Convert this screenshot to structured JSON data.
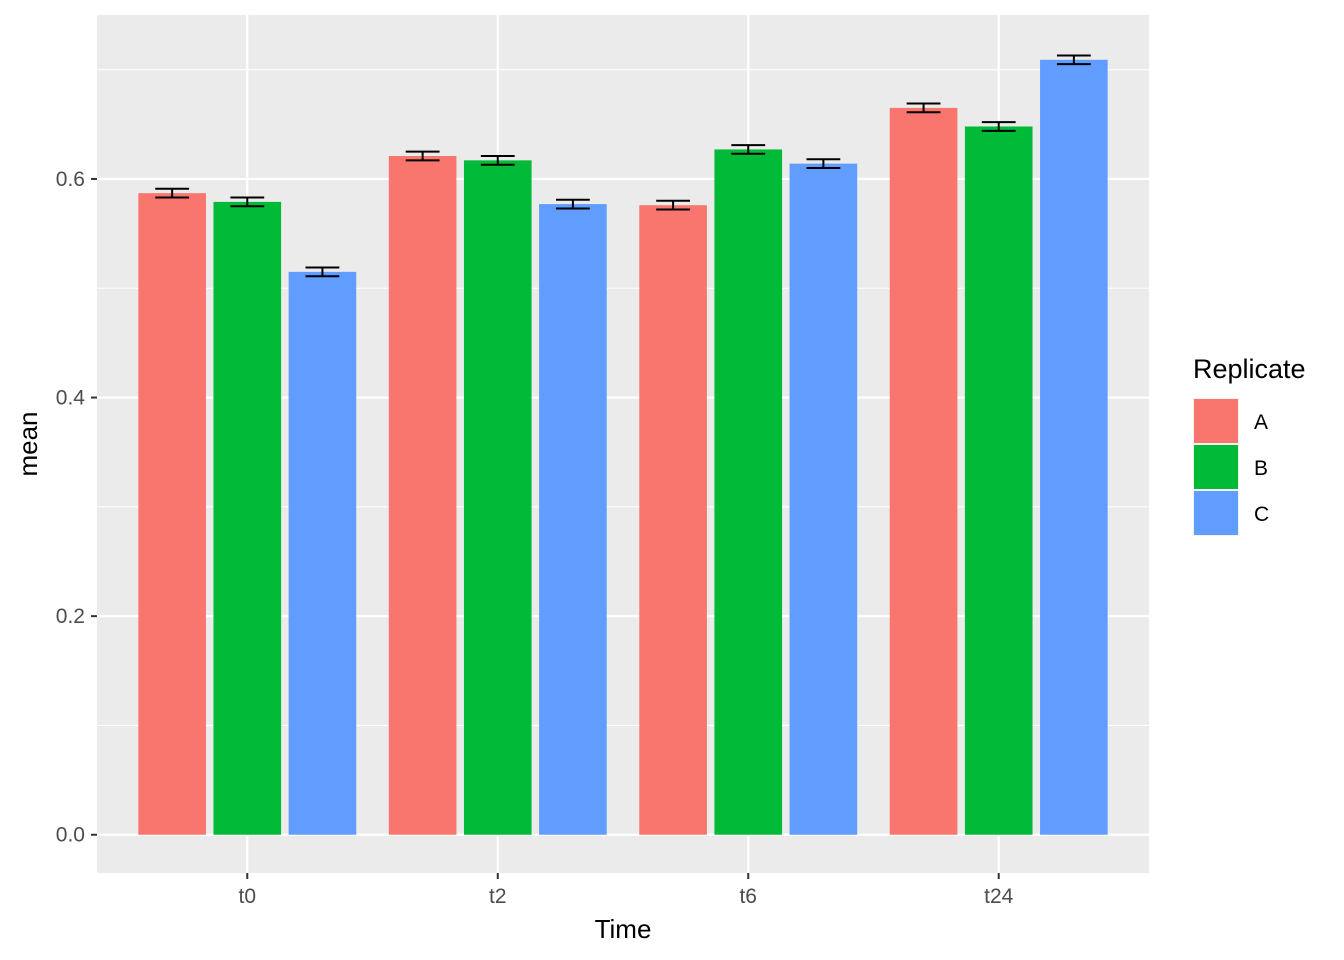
{
  "chart_data": {
    "type": "bar",
    "xlabel": "Time",
    "ylabel": "mean",
    "categories": [
      "t0",
      "t2",
      "t6",
      "t24"
    ],
    "ylim": [
      -0.035,
      0.75
    ],
    "yticks": [
      0.0,
      0.2,
      0.4,
      0.6
    ],
    "ytick_labels": [
      "0.0",
      "0.2",
      "0.4",
      "0.6"
    ],
    "grid": true,
    "legend": {
      "title": "Replicate",
      "position": "right"
    },
    "series": [
      {
        "name": "A",
        "color": "#F8766D",
        "values": [
          0.587,
          0.621,
          0.576,
          0.665
        ],
        "errors": [
          0.004,
          0.004,
          0.004,
          0.004
        ]
      },
      {
        "name": "B",
        "color": "#00BA38",
        "values": [
          0.579,
          0.617,
          0.627,
          0.648
        ],
        "errors": [
          0.004,
          0.004,
          0.004,
          0.004
        ]
      },
      {
        "name": "C",
        "color": "#619CFF",
        "values": [
          0.515,
          0.577,
          0.614,
          0.709
        ],
        "errors": [
          0.004,
          0.004,
          0.004,
          0.004
        ]
      }
    ],
    "colors": {
      "panel_background": "#EBEBEB",
      "grid": "#FFFFFF",
      "error_bar": "#000000"
    }
  }
}
